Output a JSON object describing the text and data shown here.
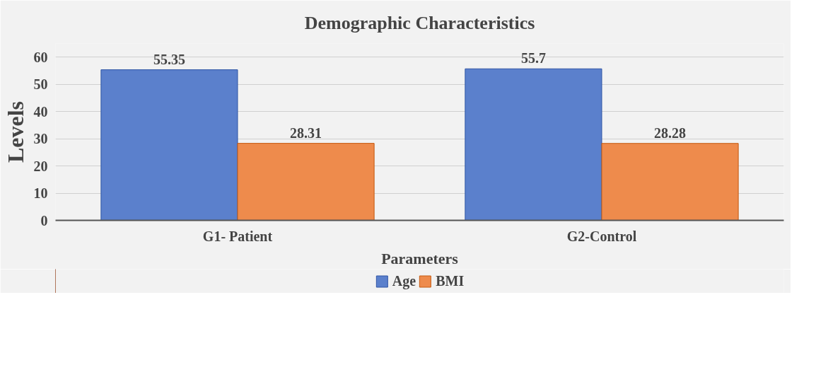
{
  "chart_data": {
    "type": "bar",
    "title": "Demographic Characteristics",
    "xlabel": "Parameters",
    "ylabel": "Levels",
    "categories": [
      "G1- Patient",
      "G2-Control"
    ],
    "series": [
      {
        "name": "Age",
        "color": "#5b80cc",
        "values": [
          55.35,
          55.7
        ]
      },
      {
        "name": "BMI",
        "color": "#ee8b4c",
        "values": [
          28.31,
          28.28
        ]
      }
    ],
    "ylim": [
      0,
      65
    ],
    "yticks": [
      0,
      10,
      20,
      30,
      40,
      50,
      60
    ],
    "grid": "y",
    "legend": "bottom",
    "data_labels": true
  }
}
